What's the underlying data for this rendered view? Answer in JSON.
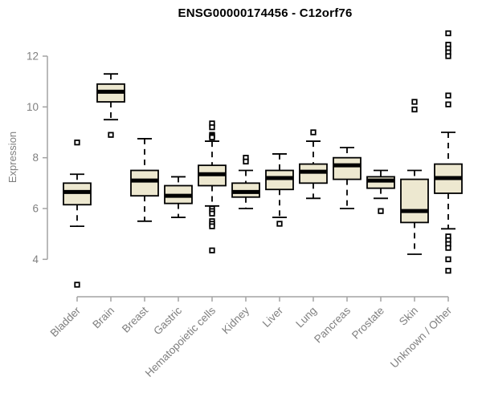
{
  "page": {
    "background": "#ffffff"
  },
  "chart_data": {
    "type": "boxplot",
    "title": "ENSG00000174456 - C12orf76",
    "ylabel": "Expression",
    "xlabel": "",
    "grid": false,
    "legend": false,
    "y_axis": {
      "ticks": [
        4,
        6,
        8,
        10,
        12
      ],
      "range_shown": [
        4,
        12
      ],
      "data_range": [
        3.0,
        12.9
      ]
    },
    "categories": [
      "Bladder",
      "Brain",
      "Breast",
      "Gastric",
      "Hematopoietic cells",
      "Kidney",
      "Liver",
      "Lung",
      "Pancreas",
      "Prostate",
      "Skin",
      "Unknown / Other"
    ],
    "boxes": [
      {
        "category": "Bladder",
        "whisker_low": 5.3,
        "q1": 6.15,
        "median": 6.65,
        "q3": 7.0,
        "whisker_high": 7.35,
        "outliers": [
          8.6,
          3.0
        ]
      },
      {
        "category": "Brain",
        "whisker_low": 9.5,
        "q1": 10.2,
        "median": 10.6,
        "q3": 10.9,
        "whisker_high": 11.3,
        "outliers": [
          8.9
        ]
      },
      {
        "category": "Breast",
        "whisker_low": 5.5,
        "q1": 6.5,
        "median": 7.1,
        "q3": 7.5,
        "whisker_high": 8.75,
        "outliers": []
      },
      {
        "category": "Gastric",
        "whisker_low": 5.65,
        "q1": 6.2,
        "median": 6.5,
        "q3": 6.9,
        "whisker_high": 7.25,
        "outliers": []
      },
      {
        "category": "Hematopoietic cells",
        "whisker_low": 6.1,
        "q1": 6.9,
        "median": 7.35,
        "q3": 7.7,
        "whisker_high": 8.65,
        "outliers": [
          9.35,
          9.2,
          8.9,
          8.85,
          8.8,
          6.0,
          5.9,
          5.8,
          5.5,
          5.4,
          5.3,
          4.35
        ]
      },
      {
        "category": "Kidney",
        "whisker_low": 6.0,
        "q1": 6.45,
        "median": 6.65,
        "q3": 7.0,
        "whisker_high": 7.5,
        "outliers": [
          8.0,
          7.85
        ]
      },
      {
        "category": "Liver",
        "whisker_low": 5.65,
        "q1": 6.75,
        "median": 7.2,
        "q3": 7.5,
        "whisker_high": 8.15,
        "outliers": [
          5.4
        ]
      },
      {
        "category": "Lung",
        "whisker_low": 6.4,
        "q1": 7.0,
        "median": 7.45,
        "q3": 7.75,
        "whisker_high": 8.65,
        "outliers": [
          9.0
        ]
      },
      {
        "category": "Pancreas",
        "whisker_low": 6.0,
        "q1": 7.15,
        "median": 7.7,
        "q3": 8.0,
        "whisker_high": 8.4,
        "outliers": []
      },
      {
        "category": "Prostate",
        "whisker_low": 6.4,
        "q1": 6.8,
        "median": 7.1,
        "q3": 7.25,
        "whisker_high": 7.5,
        "outliers": [
          5.9
        ]
      },
      {
        "category": "Skin",
        "whisker_low": 4.2,
        "q1": 5.45,
        "median": 5.9,
        "q3": 7.15,
        "whisker_high": 7.5,
        "outliers": [
          10.2,
          9.9
        ]
      },
      {
        "category": "Unknown / Other",
        "whisker_low": 5.2,
        "q1": 6.6,
        "median": 7.2,
        "q3": 7.75,
        "whisker_high": 9.0,
        "outliers": [
          12.9,
          12.45,
          12.3,
          12.15,
          12.0,
          10.45,
          10.1,
          4.9,
          4.75,
          4.6,
          4.45,
          4.0,
          3.55
        ]
      }
    ],
    "colors": {
      "box_fill": "#ede8d0",
      "box_border": "#000000",
      "median": "#000000",
      "whisker": "#000000",
      "axis_line": "#a3a3a3",
      "axis_text": "#7f7f7f",
      "title": "#000000"
    }
  }
}
